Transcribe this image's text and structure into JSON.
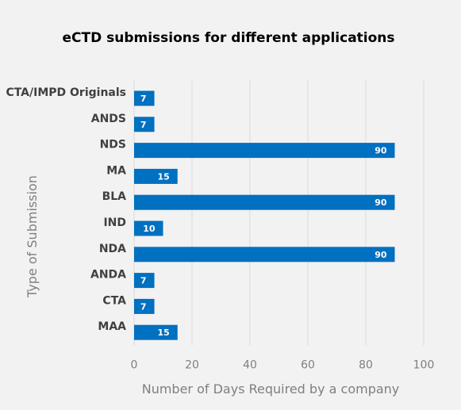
{
  "chart_data": {
    "type": "bar",
    "orientation": "horizontal",
    "title": "eCTD submissions for different applications",
    "xlabel": "Number of Days Required by a company",
    "ylabel": "Type of Submission",
    "categories": [
      "CTA/IMPD Originals",
      "ANDS",
      "NDS",
      "MA",
      "BLA",
      "IND",
      "NDA",
      "ANDA",
      "CTA",
      "MAA"
    ],
    "values": [
      7,
      7,
      90,
      15,
      90,
      10,
      90,
      7,
      7,
      15
    ],
    "xlim": [
      0,
      100
    ],
    "xticks": [
      0,
      20,
      40,
      60,
      80,
      100
    ],
    "bar_color": "#0070c0",
    "grid": "vertical",
    "legend": "none"
  }
}
